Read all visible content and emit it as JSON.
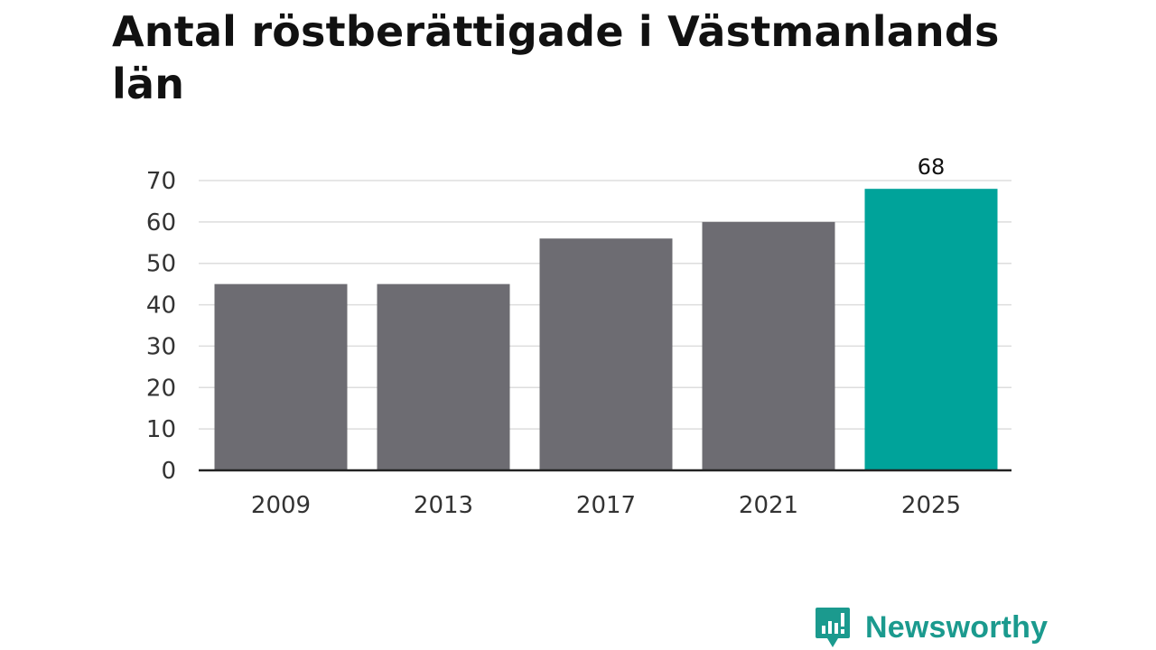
{
  "title": "Antal röstberättigade i Västmanlands län",
  "brand": {
    "name": "Newsworthy",
    "icon": "bar-chart-speech-bubble-icon",
    "color": "#1b9a8e"
  },
  "chart_data": {
    "type": "bar",
    "title": "Antal röstberättigade i Västmanlands län",
    "xlabel": "",
    "ylabel": "",
    "categories": [
      "2009",
      "2013",
      "2017",
      "2021",
      "2025"
    ],
    "values": [
      45,
      45,
      56,
      60,
      68
    ],
    "data_labels": [
      null,
      null,
      null,
      null,
      "68"
    ],
    "ylim": [
      0,
      70
    ],
    "yticks": [
      0,
      10,
      20,
      30,
      40,
      50,
      60,
      70
    ],
    "grid": true,
    "legend": "none",
    "colors": {
      "default_bar": "#6d6c72",
      "highlight_bar": "#00a39a",
      "gridline": "#dddddd",
      "axis": "#222222",
      "tick_text": "#333333"
    },
    "highlight_index": 4
  }
}
